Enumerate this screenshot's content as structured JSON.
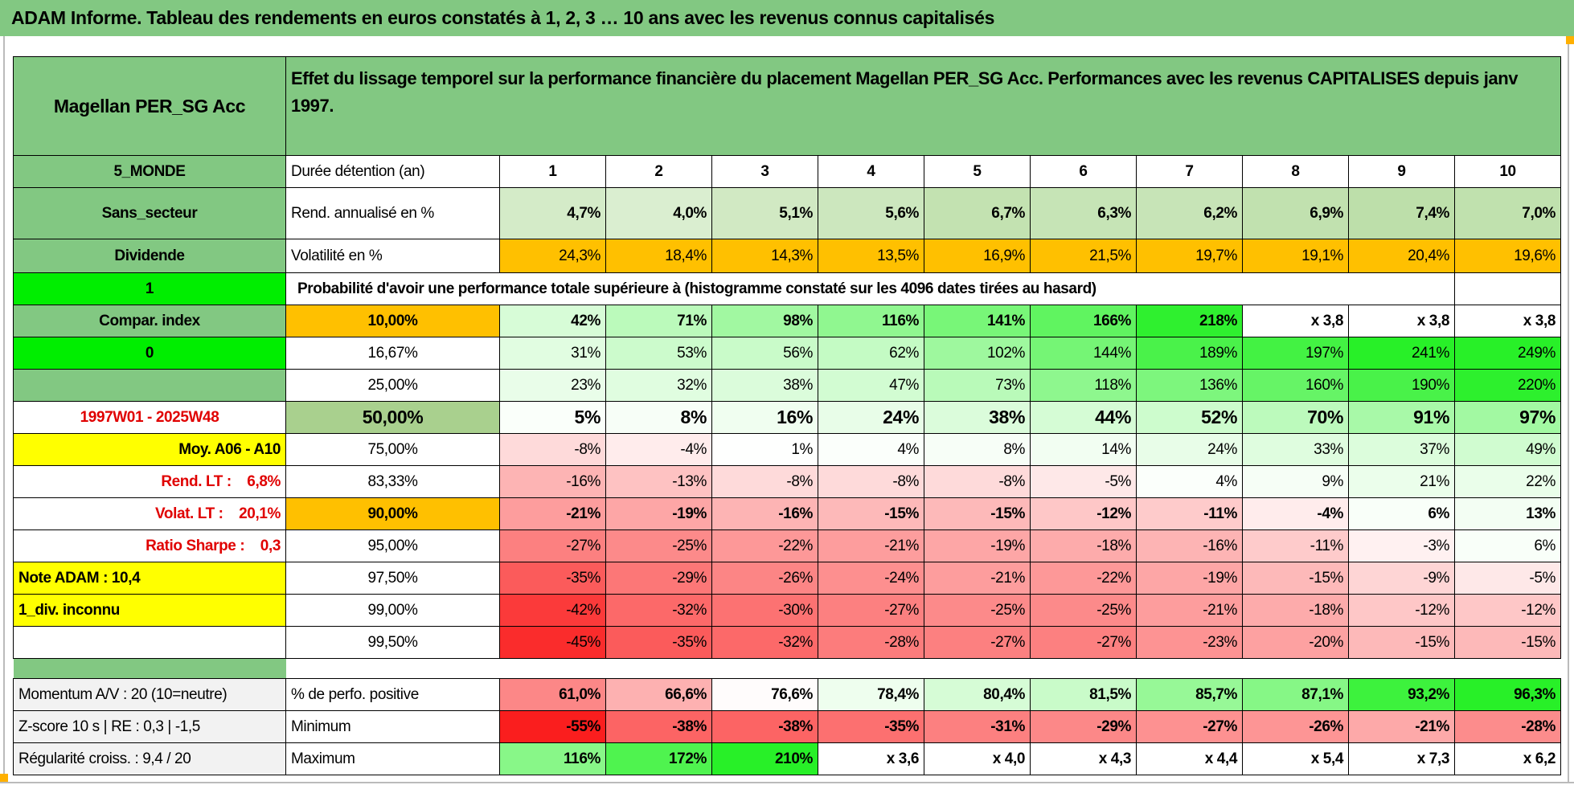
{
  "title": "ADAM Informe. Tableau des rendements en euros constatés à 1, 2, 3 … 10 ans avec les revenus connus capitalisés",
  "fund_name": "Magellan PER_SG Acc",
  "description": "Effet du lissage temporel sur la performance financière du placement Magellan PER_SG Acc. Performances avec les revenus CAPITALISES depuis janv 1997.",
  "left": {
    "zone": "5_MONDE",
    "sector": "Sans_secteur",
    "dividend": "Dividende",
    "flag1": "1",
    "compar": "Compar. index",
    "flag0": "0",
    "period": "1997W01 - 2025W48",
    "moy": "Moy. A06 - A10",
    "rend_lt": "Rend. LT :    6,8%",
    "volat_lt": "Volat. LT :    20,1%",
    "sharpe": "Ratio Sharpe :    0,3",
    "note": "Note ADAM : 10,4",
    "div": "1_div. inconnu",
    "momentum": "Momentum A/V : 20 (10=neutre)",
    "zscore": "Z-score 10 s | RE : 0,3 | -1,5",
    "regularite": "Régularité croiss. : 9,4 / 20"
  },
  "duration": {
    "label": "Durée détention (an)",
    "years": [
      "1",
      "2",
      "3",
      "4",
      "5",
      "6",
      "7",
      "8",
      "9",
      "10"
    ]
  },
  "rend": {
    "label": "Rend. annualisé en %",
    "values": [
      "4,7%",
      "4,0%",
      "5,1%",
      "5,6%",
      "6,7%",
      "6,3%",
      "6,2%",
      "6,9%",
      "7,4%",
      "7,0%"
    ]
  },
  "vol": {
    "label": "Volatilité en %",
    "values": [
      "24,3%",
      "18,4%",
      "14,3%",
      "13,5%",
      "16,9%",
      "21,5%",
      "19,7%",
      "19,1%",
      "20,4%",
      "19,6%"
    ]
  },
  "prob_title": "Probabilité d'avoir une performance totale supérieure à (histogramme constaté sur les 4096 dates tirées au hasard)",
  "prob_rows": [
    {
      "threshold": "10,00%",
      "values": [
        "42%",
        "71%",
        "98%",
        "116%",
        "141%",
        "166%",
        "218%",
        "x 3,8",
        "x 3,8",
        "x 3,8"
      ]
    },
    {
      "threshold": "16,67%",
      "values": [
        "31%",
        "53%",
        "56%",
        "62%",
        "102%",
        "144%",
        "189%",
        "197%",
        "241%",
        "249%"
      ]
    },
    {
      "threshold": "25,00%",
      "values": [
        "23%",
        "32%",
        "38%",
        "47%",
        "73%",
        "118%",
        "136%",
        "160%",
        "190%",
        "220%"
      ]
    },
    {
      "threshold": "50,00%",
      "values": [
        "5%",
        "8%",
        "16%",
        "24%",
        "38%",
        "44%",
        "52%",
        "70%",
        "91%",
        "97%"
      ]
    },
    {
      "threshold": "75,00%",
      "values": [
        "-8%",
        "-4%",
        "1%",
        "4%",
        "8%",
        "14%",
        "24%",
        "33%",
        "37%",
        "49%"
      ]
    },
    {
      "threshold": "83,33%",
      "values": [
        "-16%",
        "-13%",
        "-8%",
        "-8%",
        "-8%",
        "-5%",
        "4%",
        "9%",
        "21%",
        "22%"
      ]
    },
    {
      "threshold": "90,00%",
      "values": [
        "-21%",
        "-19%",
        "-16%",
        "-15%",
        "-15%",
        "-12%",
        "-11%",
        "-4%",
        "6%",
        "13%"
      ]
    },
    {
      "threshold": "95,00%",
      "values": [
        "-27%",
        "-25%",
        "-22%",
        "-21%",
        "-19%",
        "-18%",
        "-16%",
        "-11%",
        "-3%",
        "6%"
      ]
    },
    {
      "threshold": "97,50%",
      "values": [
        "-35%",
        "-29%",
        "-26%",
        "-24%",
        "-21%",
        "-22%",
        "-19%",
        "-15%",
        "-9%",
        "-5%"
      ]
    },
    {
      "threshold": "99,00%",
      "values": [
        "-42%",
        "-32%",
        "-30%",
        "-27%",
        "-25%",
        "-25%",
        "-21%",
        "-18%",
        "-12%",
        "-12%"
      ]
    },
    {
      "threshold": "99,50%",
      "values": [
        "-45%",
        "-35%",
        "-32%",
        "-28%",
        "-27%",
        "-27%",
        "-23%",
        "-20%",
        "-15%",
        "-15%"
      ]
    }
  ],
  "positive": {
    "label": "% de perfo. positive",
    "values": [
      "61,0%",
      "66,6%",
      "76,6%",
      "78,4%",
      "80,4%",
      "81,5%",
      "85,7%",
      "87,1%",
      "93,2%",
      "96,3%"
    ]
  },
  "minimum": {
    "label": "Minimum",
    "values": [
      "-55%",
      "-38%",
      "-38%",
      "-35%",
      "-31%",
      "-29%",
      "-27%",
      "-26%",
      "-21%",
      "-28%"
    ]
  },
  "maximum": {
    "label": "Maximum",
    "values": [
      "116%",
      "172%",
      "210%",
      "x 3,6",
      "x 4,0",
      "x 4,3",
      "x 4,4",
      "x 5,4",
      "x 7,3",
      "x 6,2"
    ]
  }
}
